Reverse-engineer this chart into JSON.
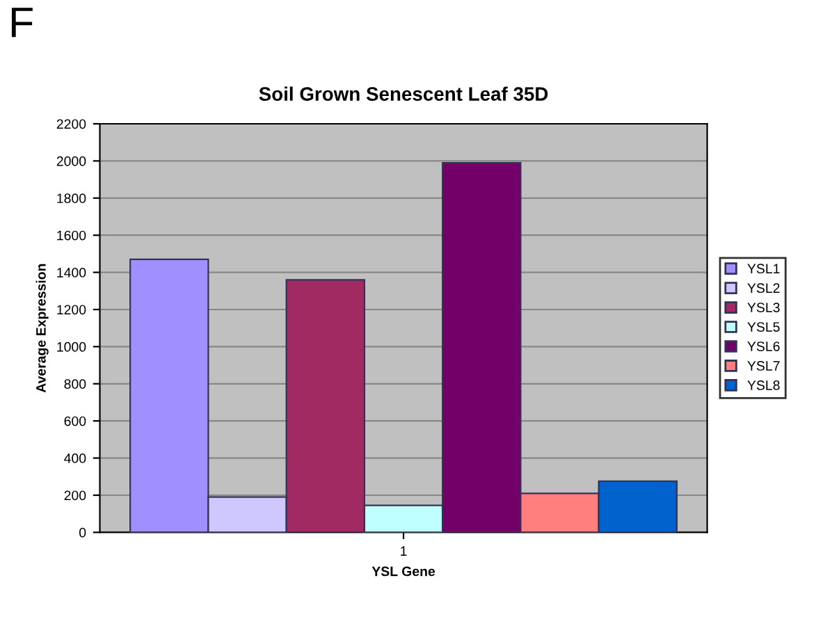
{
  "chart_data": {
    "type": "bar",
    "title": "Soil Grown Senescent Leaf 35D",
    "xlabel": "YSL Gene",
    "ylabel": "Average Expression",
    "annotations": [
      "F"
    ],
    "categories": [
      "1"
    ],
    "series": [
      {
        "name": "YSL1",
        "color": "#9f8fff",
        "values": [
          1470
        ]
      },
      {
        "name": "YSL2",
        "color": "#cfc8ff",
        "values": [
          190
        ]
      },
      {
        "name": "YSL3",
        "color": "#a22a62",
        "values": [
          1360
        ]
      },
      {
        "name": "YSL5",
        "color": "#c0ffff",
        "values": [
          145
        ]
      },
      {
        "name": "YSL6",
        "color": "#720068",
        "values": [
          1990
        ]
      },
      {
        "name": "YSL7",
        "color": "#ff7f7f",
        "values": [
          210
        ]
      },
      {
        "name": "YSL8",
        "color": "#0062cc",
        "values": [
          275
        ]
      }
    ],
    "ylim": [
      0,
      2200
    ],
    "yticks": [
      0,
      200,
      400,
      600,
      800,
      1000,
      1200,
      1400,
      1600,
      1800,
      2000,
      2200
    ],
    "grid": "y",
    "legend": "right"
  }
}
